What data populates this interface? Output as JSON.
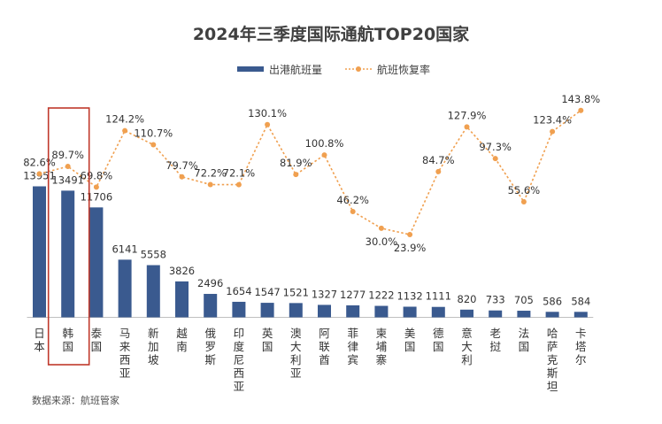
{
  "chart_data": {
    "type": "bar",
    "title": "2024年三季度国际通航TOP20国家",
    "categories": [
      "日本",
      "韩国",
      "泰国",
      "马来西亚",
      "新加坡",
      "越南",
      "俄罗斯",
      "印度尼西亚",
      "英国",
      "澳大利亚",
      "阿联酋",
      "菲律宾",
      "柬埔寨",
      "美国",
      "德国",
      "意大利",
      "老挝",
      "法国",
      "哈萨克斯坦",
      "卡塔尔"
    ],
    "series": [
      {
        "name": "出港航班量",
        "kind": "bar",
        "values": [
          13951,
          13491,
          11706,
          6141,
          5558,
          3826,
          2496,
          1654,
          1547,
          1521,
          1327,
          1277,
          1222,
          1132,
          1111,
          820,
          733,
          705,
          586,
          584
        ],
        "labels": [
          "13951",
          "13491",
          "11706",
          "6141",
          "5558",
          "3826",
          "2496",
          "1654",
          "1547",
          "1521",
          "1327",
          "1277",
          "1222",
          "1132",
          "1111",
          "820",
          "733",
          "705",
          "586",
          "584"
        ]
      },
      {
        "name": "航班恢复率",
        "kind": "line",
        "values": [
          82.6,
          89.7,
          69.8,
          124.2,
          110.7,
          79.7,
          72.2,
          72.1,
          130.1,
          81.9,
          100.8,
          46.2,
          30.0,
          23.9,
          84.7,
          127.9,
          97.3,
          55.6,
          123.4,
          143.8
        ],
        "labels": [
          "82.6%",
          "89.7%",
          "69.8%",
          "124.2%",
          "110.7%",
          "79.7%",
          "72.2%",
          "72.1%",
          "130.1%",
          "81.9%",
          "100.8%",
          "46.2%",
          "30.0%",
          "23.9%",
          "84.7%",
          "127.9%",
          "97.3%",
          "55.6%",
          "123.4%",
          "143.8%"
        ]
      }
    ],
    "highlighted_category": "韩国",
    "colors": {
      "bar": "#3a5a8f",
      "line": "#f0a050",
      "highlight": "#c0392b"
    },
    "legend_position": "top-center",
    "grid": false
  },
  "source_text": "数据来源：航班管家"
}
